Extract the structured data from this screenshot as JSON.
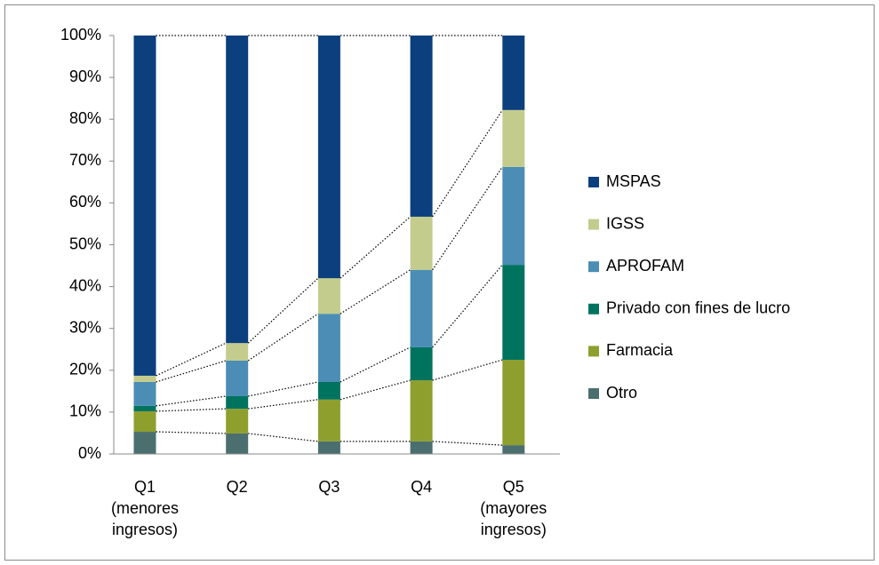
{
  "chart_data": {
    "type": "stacked_bar_100",
    "categories": [
      "Q1 (menores ingresos)",
      "Q2",
      "Q3",
      "Q4",
      "Q5 (mayores ingresos)"
    ],
    "series": [
      {
        "name": "MSPAS",
        "color": "#0b3f7e",
        "values": [
          81.3,
          73.5,
          58.0,
          43.3,
          17.8
        ]
      },
      {
        "name": "IGSS",
        "color": "#c3cc8d",
        "values": [
          1.5,
          4.2,
          8.5,
          12.7,
          13.6
        ]
      },
      {
        "name": "APROFAM",
        "color": "#4b8db5",
        "values": [
          5.7,
          8.5,
          16.3,
          18.5,
          23.4
        ]
      },
      {
        "name": "Privado con fines de lucro",
        "color": "#00735f",
        "values": [
          1.3,
          3.0,
          4.2,
          7.9,
          22.7
        ]
      },
      {
        "name": "Farmacia",
        "color": "#8e9f2e",
        "values": [
          4.9,
          5.9,
          10.0,
          14.6,
          20.4
        ]
      },
      {
        "name": "Otro",
        "color": "#4b6f6f",
        "values": [
          5.3,
          4.9,
          3.0,
          3.0,
          2.1
        ]
      }
    ],
    "ylim": [
      0,
      100
    ],
    "yticks": [
      {
        "value": 0,
        "label": "0%"
      },
      {
        "value": 10,
        "label": "10%"
      },
      {
        "value": 20,
        "label": "20%"
      },
      {
        "value": 30,
        "label": "30%"
      },
      {
        "value": 40,
        "label": "40%"
      },
      {
        "value": 50,
        "label": "50%"
      },
      {
        "value": 60,
        "label": "60%"
      },
      {
        "value": 70,
        "label": "70%"
      },
      {
        "value": 80,
        "label": "80%"
      },
      {
        "value": 90,
        "label": "90%"
      },
      {
        "value": 100,
        "label": "100%"
      }
    ],
    "legend": "right"
  }
}
